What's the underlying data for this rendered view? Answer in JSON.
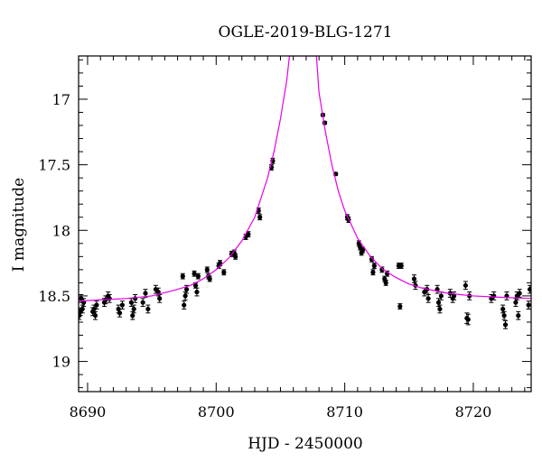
{
  "chart_data": {
    "type": "scatter",
    "title": "OGLE-2019-BLG-1271",
    "xlabel": "HJD - 2450000",
    "ylabel": "I magnitude",
    "xlim": [
      8689.3,
      8724.5
    ],
    "ylim": [
      19.23,
      16.67
    ],
    "y_inverted": true,
    "x_major_ticks": [
      8690,
      8700,
      8710,
      8720
    ],
    "x_minor_step": 1,
    "y_major_ticks": [
      17,
      17.5,
      18,
      18.5,
      19
    ],
    "y_minor_step": 0.1,
    "grid": false,
    "colors": {
      "model": "#e800e8",
      "points": "#000000",
      "frame": "#000000"
    },
    "series": [
      {
        "type": "scatter",
        "points": [
          [
            8689.35,
            18.65,
            0.03
          ],
          [
            8689.45,
            18.62,
            0.03
          ],
          [
            8689.5,
            18.52,
            0.03
          ],
          [
            8689.6,
            18.6,
            0.03
          ],
          [
            8689.7,
            18.55,
            0.03
          ],
          [
            8690.4,
            18.62,
            0.03
          ],
          [
            8690.5,
            18.6,
            0.03
          ],
          [
            8690.6,
            18.65,
            0.03
          ],
          [
            8690.7,
            18.57,
            0.03
          ],
          [
            8691.3,
            18.55,
            0.03
          ],
          [
            8691.4,
            18.53,
            0.03
          ],
          [
            8691.6,
            18.5,
            0.03
          ],
          [
            8691.7,
            18.52,
            0.03
          ],
          [
            8692.4,
            18.6,
            0.03
          ],
          [
            8692.5,
            18.63,
            0.03
          ],
          [
            8692.7,
            18.57,
            0.03
          ],
          [
            8693.4,
            18.55,
            0.03
          ],
          [
            8693.5,
            18.65,
            0.03
          ],
          [
            8693.6,
            18.6,
            0.03
          ],
          [
            8693.7,
            18.52,
            0.03
          ],
          [
            8694.3,
            18.55,
            0.03
          ],
          [
            8694.5,
            18.48,
            0.03
          ],
          [
            8694.7,
            18.6,
            0.03
          ],
          [
            8695.3,
            18.45,
            0.03
          ],
          [
            8695.5,
            18.47,
            0.03
          ],
          [
            8695.6,
            18.52,
            0.03
          ],
          [
            8697.4,
            18.35,
            0.02
          ],
          [
            8697.5,
            18.57,
            0.03
          ],
          [
            8697.6,
            18.5,
            0.03
          ],
          [
            8697.7,
            18.45,
            0.03
          ],
          [
            8698.3,
            18.33,
            0.02
          ],
          [
            8698.4,
            18.42,
            0.02
          ],
          [
            8698.5,
            18.47,
            0.03
          ],
          [
            8698.6,
            18.35,
            0.02
          ],
          [
            8699.3,
            18.3,
            0.02
          ],
          [
            8699.4,
            18.35,
            0.02
          ],
          [
            8699.5,
            18.37,
            0.02
          ],
          [
            8700.2,
            18.27,
            0.02
          ],
          [
            8700.3,
            18.25,
            0.02
          ],
          [
            8700.6,
            18.32,
            0.02
          ],
          [
            8701.2,
            18.18,
            0.02
          ],
          [
            8701.4,
            18.17,
            0.02
          ],
          [
            8701.5,
            18.2,
            0.02
          ],
          [
            8702.3,
            18.05,
            0.02
          ],
          [
            8702.5,
            18.03,
            0.02
          ],
          [
            8703.3,
            17.85,
            0.02
          ],
          [
            8703.4,
            17.9,
            0.02
          ],
          [
            8704.3,
            17.52,
            0.02
          ],
          [
            8704.4,
            17.47,
            0.02
          ],
          [
            8708.3,
            17.12,
            0.01
          ],
          [
            8708.45,
            17.18,
            0.01
          ],
          [
            8709.3,
            17.57,
            0.01
          ],
          [
            8710.2,
            17.9,
            0.02
          ],
          [
            8710.3,
            17.92,
            0.02
          ],
          [
            8711.1,
            18.1,
            0.02
          ],
          [
            8711.2,
            18.13,
            0.02
          ],
          [
            8711.3,
            18.17,
            0.02
          ],
          [
            8711.4,
            18.15,
            0.02
          ],
          [
            8712.1,
            18.22,
            0.02
          ],
          [
            8712.2,
            18.32,
            0.02
          ],
          [
            8712.3,
            18.27,
            0.02
          ],
          [
            8712.9,
            18.3,
            0.02
          ],
          [
            8713.1,
            18.37,
            0.02
          ],
          [
            8713.2,
            18.4,
            0.02
          ],
          [
            8713.3,
            18.33,
            0.02
          ],
          [
            8714.2,
            18.27,
            0.02
          ],
          [
            8714.3,
            18.58,
            0.02
          ],
          [
            8714.4,
            18.27,
            0.02
          ],
          [
            8715.4,
            18.37,
            0.03
          ],
          [
            8715.5,
            18.42,
            0.03
          ],
          [
            8716.2,
            18.47,
            0.03
          ],
          [
            8716.4,
            18.45,
            0.03
          ],
          [
            8716.5,
            18.52,
            0.03
          ],
          [
            8717.2,
            18.45,
            0.03
          ],
          [
            8717.3,
            18.55,
            0.03
          ],
          [
            8717.4,
            18.6,
            0.03
          ],
          [
            8717.5,
            18.5,
            0.03
          ],
          [
            8718.2,
            18.48,
            0.03
          ],
          [
            8718.4,
            18.52,
            0.03
          ],
          [
            8718.5,
            18.5,
            0.03
          ],
          [
            8719.4,
            18.42,
            0.03
          ],
          [
            8719.5,
            18.67,
            0.04
          ],
          [
            8719.6,
            18.68,
            0.04
          ],
          [
            8719.7,
            18.5,
            0.03
          ],
          [
            8721.4,
            18.52,
            0.03
          ],
          [
            8721.6,
            18.5,
            0.03
          ],
          [
            8722.3,
            18.6,
            0.03
          ],
          [
            8722.4,
            18.65,
            0.03
          ],
          [
            8722.5,
            18.72,
            0.03
          ],
          [
            8722.6,
            18.5,
            0.03
          ],
          [
            8723.3,
            18.55,
            0.03
          ],
          [
            8723.4,
            18.5,
            0.03
          ],
          [
            8723.5,
            18.65,
            0.03
          ],
          [
            8723.6,
            18.48,
            0.03
          ],
          [
            8724.3,
            18.57,
            0.03
          ],
          [
            8724.4,
            18.45,
            0.03
          ]
        ]
      },
      {
        "type": "line",
        "points": [
          [
            8689.3,
            18.54
          ],
          [
            8691,
            18.53
          ],
          [
            8693,
            18.52
          ],
          [
            8695,
            18.5
          ],
          [
            8697,
            18.45
          ],
          [
            8698,
            18.42
          ],
          [
            8699,
            18.37
          ],
          [
            8700,
            18.3
          ],
          [
            8701,
            18.21
          ],
          [
            8702,
            18.08
          ],
          [
            8703,
            17.9
          ],
          [
            8704,
            17.6
          ],
          [
            8704.5,
            17.4
          ],
          [
            8705,
            17.15
          ],
          [
            8705.5,
            16.85
          ],
          [
            8705.7,
            16.67
          ],
          [
            8707.8,
            16.67
          ],
          [
            8708,
            16.95
          ],
          [
            8708.5,
            17.25
          ],
          [
            8709,
            17.5
          ],
          [
            8709.5,
            17.7
          ],
          [
            8710,
            17.85
          ],
          [
            8711,
            18.06
          ],
          [
            8712,
            18.2
          ],
          [
            8713,
            18.3
          ],
          [
            8714,
            18.36
          ],
          [
            8715,
            18.41
          ],
          [
            8716,
            18.44
          ],
          [
            8717,
            18.46
          ],
          [
            8718,
            18.48
          ],
          [
            8719,
            18.49
          ],
          [
            8720,
            18.5
          ],
          [
            8722,
            18.51
          ],
          [
            8724.5,
            18.52
          ]
        ]
      }
    ]
  }
}
